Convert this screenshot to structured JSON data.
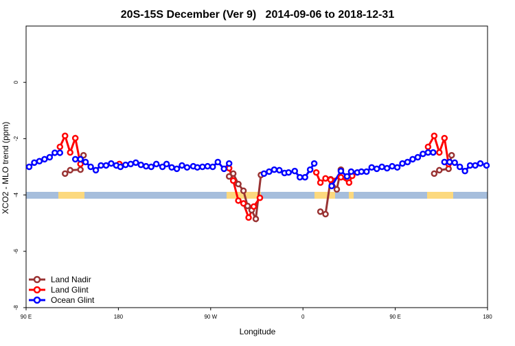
{
  "chart_data": {
    "type": "line",
    "title": "20S-15S December (Ver 9)   2014-09-06 to 2018-12-31",
    "x_label": "Longitude",
    "y_label": "XCO2 - MLO trend (ppm)",
    "xlim": [
      90,
      540
    ],
    "ylim": [
      -8,
      2
    ],
    "xticks": [
      {
        "value": 90,
        "label": "90 E"
      },
      {
        "value": 180,
        "label": "180"
      },
      {
        "value": 270,
        "label": "90 W"
      },
      {
        "value": 360,
        "label": "0"
      },
      {
        "value": 450,
        "label": "90 E"
      },
      {
        "value": 540,
        "label": "180"
      }
    ],
    "yticks": [
      -8,
      -6,
      -4,
      -2,
      0
    ],
    "legend": "bottom-left",
    "series": [
      {
        "name": "Land Nadir",
        "color": "#993333",
        "x": [
          128,
          133,
          143,
          146,
          null,
          288,
          292,
          297,
          302,
          306,
          310,
          314,
          319,
          null,
          377,
          382,
          387,
          393,
          397,
          null,
          488,
          493,
          502,
          505
        ],
        "values": [
          -3.24,
          -3.12,
          -3.1,
          -2.59,
          null,
          -3.34,
          -3.24,
          -3.61,
          -3.85,
          -4.39,
          -4.54,
          -4.85,
          -3.29,
          null,
          -4.59,
          -4.68,
          -3.44,
          -3.8,
          -3.1,
          null,
          -3.24,
          -3.12,
          -3.07,
          -2.59
        ]
      },
      {
        "name": "Land Glint",
        "color": "#ff0000",
        "x": [
          123,
          128,
          133,
          138,
          143,
          null,
          181,
          null,
          288,
          292,
          297,
          302,
          307,
          312,
          318,
          null,
          373,
          377,
          382,
          387,
          397,
          405,
          408,
          null,
          482,
          488,
          493,
          498,
          502
        ],
        "values": [
          -2.29,
          -1.9,
          -2.49,
          -1.98,
          -2.9,
          null,
          -2.9,
          null,
          -3.05,
          -3.49,
          -4.2,
          -4.3,
          -4.8,
          -4.41,
          -4.1,
          null,
          -3.2,
          -3.56,
          -3.41,
          -3.46,
          -3.37,
          -3.56,
          -3.32,
          null,
          -2.29,
          -1.9,
          -2.49,
          -1.98,
          -2.9
        ]
      },
      {
        "name": "Ocean Glint",
        "color": "#0000ff",
        "x": [
          93,
          98,
          103,
          108,
          113,
          118,
          123,
          null,
          138,
          143,
          148,
          153,
          158,
          163,
          168,
          173,
          178,
          182,
          187,
          192,
          197,
          202,
          207,
          212,
          217,
          223,
          227,
          232,
          237,
          242,
          247,
          253,
          257,
          262,
          267,
          272,
          277,
          283,
          288,
          null,
          322,
          327,
          332,
          337,
          342,
          346,
          352,
          357,
          362,
          367,
          371,
          null,
          388,
          397,
          403,
          407,
          413,
          417,
          422,
          427,
          432,
          437,
          442,
          447,
          452,
          457,
          462,
          467,
          472,
          477,
          482,
          487,
          null,
          498,
          503,
          508,
          513,
          518,
          523,
          528,
          533,
          539
        ],
        "values": [
          -3.0,
          -2.85,
          -2.8,
          -2.73,
          -2.66,
          -2.5,
          -2.5,
          null,
          -2.73,
          -2.73,
          -2.83,
          -3.0,
          -3.12,
          -2.95,
          -2.95,
          -2.88,
          -2.95,
          -3.0,
          -2.93,
          -2.9,
          -2.85,
          -2.93,
          -2.98,
          -3.0,
          -2.9,
          -3.0,
          -2.9,
          -3.02,
          -3.07,
          -2.95,
          -3.02,
          -2.98,
          -3.02,
          -3.0,
          -2.98,
          -3.0,
          -2.83,
          -3.07,
          -2.88,
          null,
          -3.24,
          -3.17,
          -3.1,
          -3.12,
          -3.22,
          -3.2,
          -3.15,
          -3.37,
          -3.37,
          -3.1,
          -2.88,
          null,
          -3.68,
          -3.15,
          -3.34,
          -3.17,
          -3.2,
          -3.17,
          -3.17,
          -3.02,
          -3.07,
          -3.0,
          -3.05,
          -2.98,
          -3.02,
          -2.88,
          -2.83,
          -2.73,
          -2.66,
          -2.54,
          -2.49,
          -2.49,
          null,
          -2.83,
          -2.83,
          -2.85,
          -3.0,
          -3.15,
          -2.95,
          -2.95,
          -2.88,
          -2.95
        ]
      }
    ]
  }
}
